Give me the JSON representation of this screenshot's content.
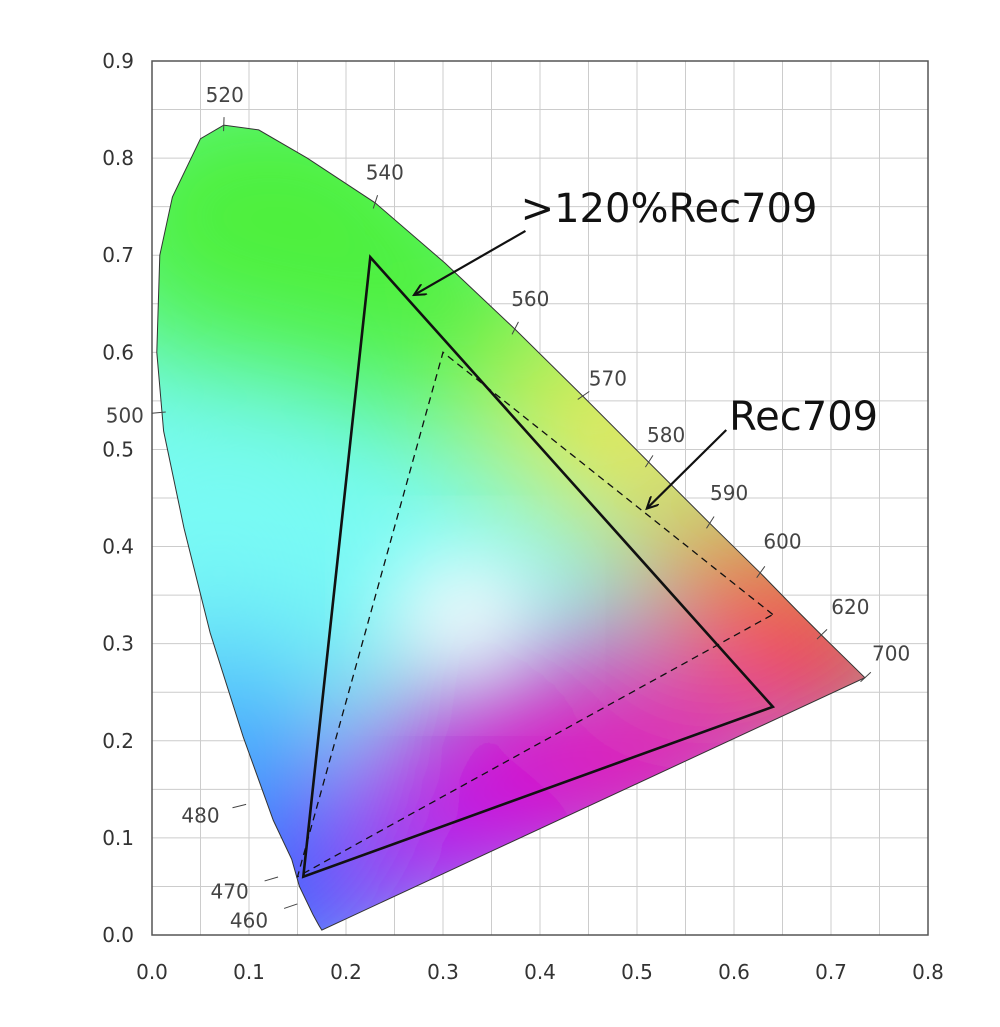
{
  "chart_data": {
    "type": "scatter",
    "title": "",
    "xlabel": "",
    "ylabel": "",
    "xlim": [
      0.0,
      0.8
    ],
    "ylim": [
      0.0,
      0.9
    ],
    "grid": true,
    "x_ticks": [
      "0.0",
      "0.1",
      "0.2",
      "0.3",
      "0.4",
      "0.5",
      "0.6",
      "0.7",
      "0.8"
    ],
    "y_ticks": [
      "0.0",
      "0.1",
      "0.2",
      "0.3",
      "0.4",
      "0.5",
      "0.6",
      "0.7",
      "0.8",
      "0.9"
    ],
    "spectral_locus": {
      "name": "",
      "points": [
        [
          0.175,
          0.005
        ],
        [
          0.172,
          0.01
        ],
        [
          0.166,
          0.021
        ],
        [
          0.152,
          0.05
        ],
        [
          0.144,
          0.078
        ],
        [
          0.125,
          0.118
        ],
        [
          0.094,
          0.204
        ],
        [
          0.06,
          0.311
        ],
        [
          0.033,
          0.419
        ],
        [
          0.012,
          0.519
        ],
        [
          0.005,
          0.6
        ],
        [
          0.008,
          0.7
        ],
        [
          0.021,
          0.76
        ],
        [
          0.05,
          0.82
        ],
        [
          0.074,
          0.834
        ],
        [
          0.11,
          0.829
        ],
        [
          0.16,
          0.8
        ],
        [
          0.23,
          0.754
        ],
        [
          0.302,
          0.692
        ],
        [
          0.374,
          0.624
        ],
        [
          0.444,
          0.555
        ],
        [
          0.512,
          0.487
        ],
        [
          0.575,
          0.424
        ],
        [
          0.627,
          0.373
        ],
        [
          0.665,
          0.334
        ],
        [
          0.69,
          0.309
        ],
        [
          0.735,
          0.265
        ]
      ]
    },
    "wavelength_labels": [
      {
        "text": "460",
        "x": 0.144,
        "y": 0.03,
        "tx": 0.1,
        "ty": 0.015
      },
      {
        "text": "470",
        "x": 0.124,
        "y": 0.058,
        "tx": 0.08,
        "ty": 0.045
      },
      {
        "text": "480",
        "x": 0.091,
        "y": 0.133,
        "tx": 0.05,
        "ty": 0.123
      },
      {
        "text": "500",
        "x": 0.008,
        "y": 0.538,
        "tx": -0.028,
        "ty": 0.535
      },
      {
        "text": "520",
        "x": 0.074,
        "y": 0.834,
        "tx": 0.075,
        "ty": 0.865
      },
      {
        "text": "540",
        "x": 0.23,
        "y": 0.754,
        "tx": 0.24,
        "ty": 0.785
      },
      {
        "text": "560",
        "x": 0.374,
        "y": 0.624,
        "tx": 0.39,
        "ty": 0.655
      },
      {
        "text": "570",
        "x": 0.444,
        "y": 0.555,
        "tx": 0.47,
        "ty": 0.573
      },
      {
        "text": "580",
        "x": 0.512,
        "y": 0.487,
        "tx": 0.53,
        "ty": 0.515
      },
      {
        "text": "590",
        "x": 0.575,
        "y": 0.424,
        "tx": 0.595,
        "ty": 0.455
      },
      {
        "text": "600",
        "x": 0.627,
        "y": 0.373,
        "tx": 0.65,
        "ty": 0.405
      },
      {
        "text": "620",
        "x": 0.69,
        "y": 0.309,
        "tx": 0.72,
        "ty": 0.338
      },
      {
        "text": "700",
        "x": 0.735,
        "y": 0.265,
        "tx": 0.762,
        "ty": 0.29
      }
    ],
    "series": [
      {
        "name": ">120%Rec709",
        "style": "solid",
        "points": [
          [
            0.64,
            0.235
          ],
          [
            0.225,
            0.698
          ],
          [
            0.156,
            0.06
          ]
        ]
      },
      {
        "name": "Rec709",
        "style": "dashed",
        "points": [
          [
            0.64,
            0.33
          ],
          [
            0.3,
            0.6
          ],
          [
            0.15,
            0.06
          ]
        ]
      }
    ],
    "annotations": [
      {
        "text": ">120%Rec709",
        "x": 0.38,
        "y": 0.734,
        "arrow_from": [
          0.385,
          0.725
        ],
        "arrow_to": [
          0.27,
          0.659
        ]
      },
      {
        "text": "Rec709",
        "x": 0.595,
        "y": 0.52,
        "arrow_from": [
          0.592,
          0.52
        ],
        "arrow_to": [
          0.51,
          0.439
        ]
      }
    ],
    "colors": {
      "axis": "#555555",
      "grid": "#cccccc",
      "triangle": "#111111",
      "white_point": "#ffffff",
      "green": "#4ef03a",
      "cyan": "#79fbf5",
      "blue": "#2a10ff",
      "red": "#ff0010",
      "yellow": "#ffe438",
      "magenta": "#e40ab4"
    },
    "white_point": [
      0.3127,
      0.329
    ]
  }
}
